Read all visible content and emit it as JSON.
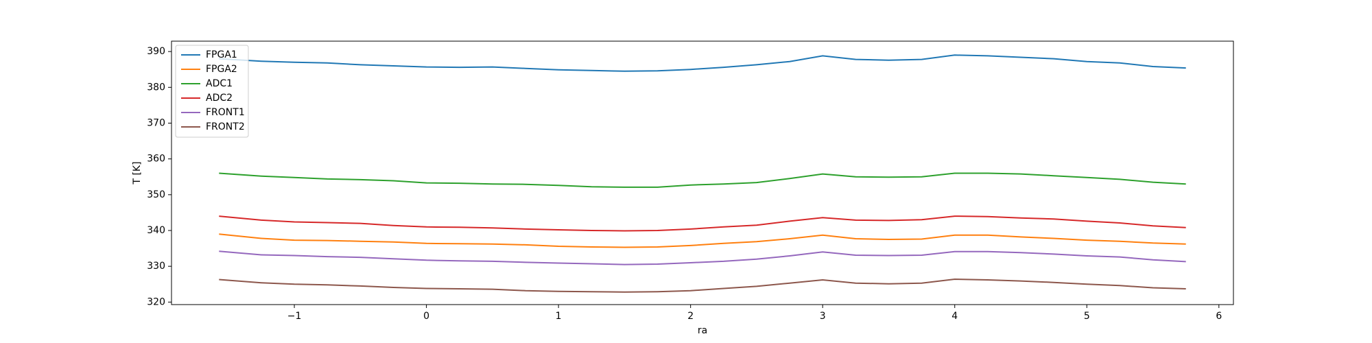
{
  "chart_data": {
    "type": "line",
    "xlabel": "ra",
    "ylabel": "T [K]",
    "x": [
      -1.57,
      -1.25,
      -1,
      -0.75,
      -0.5,
      -0.25,
      0,
      0.25,
      0.5,
      0.75,
      1,
      1.25,
      1.5,
      1.75,
      2,
      2.25,
      2.5,
      2.75,
      3,
      3.25,
      3.5,
      3.75,
      4,
      4.25,
      4.5,
      4.75,
      5,
      5.25,
      5.5,
      5.75
    ],
    "series": [
      {
        "name": "FPGA1",
        "color": "#1f77b4",
        "values": [
          388,
          387.3,
          387,
          386.8,
          386.3,
          386,
          385.7,
          385.6,
          385.7,
          385.3,
          384.9,
          384.7,
          384.5,
          384.6,
          385,
          385.6,
          386.3,
          387.2,
          388.8,
          387.8,
          387.6,
          387.8,
          389,
          388.8,
          388.4,
          388,
          387.2,
          386.8,
          385.8,
          385.4
        ]
      },
      {
        "name": "FPGA2",
        "color": "#ff7f0e",
        "values": [
          339,
          337.8,
          337.3,
          337.2,
          337,
          336.8,
          336.4,
          336.3,
          336.2,
          336,
          335.6,
          335.4,
          335.3,
          335.4,
          335.8,
          336.4,
          336.9,
          337.7,
          338.7,
          337.7,
          337.5,
          337.6,
          338.7,
          338.7,
          338.2,
          337.8,
          337.3,
          337,
          336.5,
          336.2
        ]
      },
      {
        "name": "ADC1",
        "color": "#2ca02c",
        "values": [
          356,
          355.2,
          354.8,
          354.4,
          354.2,
          353.9,
          353.3,
          353.2,
          353,
          352.9,
          352.6,
          352.2,
          352.1,
          352.1,
          352.7,
          353,
          353.4,
          354.5,
          355.8,
          355,
          354.9,
          355,
          356,
          356,
          355.8,
          355.3,
          354.8,
          354.3,
          353.5,
          353
        ]
      },
      {
        "name": "ADC2",
        "color": "#d62728",
        "values": [
          344,
          342.9,
          342.4,
          342.2,
          342,
          341.4,
          341,
          340.9,
          340.7,
          340.4,
          340.2,
          340,
          339.9,
          340,
          340.4,
          341,
          341.5,
          342.6,
          343.6,
          342.9,
          342.8,
          343,
          344,
          343.9,
          343.5,
          343.2,
          342.6,
          342.1,
          341.3,
          340.8
        ]
      },
      {
        "name": "FRONT1",
        "color": "#9467bd",
        "values": [
          334.2,
          333.2,
          333,
          332.7,
          332.5,
          332.1,
          331.7,
          331.5,
          331.4,
          331.1,
          330.9,
          330.7,
          330.5,
          330.6,
          331,
          331.4,
          332,
          332.9,
          334,
          333.1,
          333,
          333.1,
          334.1,
          334.1,
          333.8,
          333.4,
          332.9,
          332.6,
          331.8,
          331.3
        ]
      },
      {
        "name": "FRONT2",
        "color": "#8c564b",
        "values": [
          326.3,
          325.4,
          325,
          324.8,
          324.5,
          324.1,
          323.8,
          323.7,
          323.6,
          323.2,
          323,
          322.9,
          322.8,
          322.9,
          323.2,
          323.8,
          324.4,
          325.3,
          326.2,
          325.3,
          325.1,
          325.3,
          326.4,
          326.2,
          325.9,
          325.5,
          325,
          324.6,
          324,
          323.7
        ]
      }
    ],
    "xlim": [
      -1.93,
      6.11
    ],
    "xticks": [
      {
        "value": -1,
        "label": "−1"
      },
      0,
      1,
      2,
      3,
      4,
      5,
      6
    ],
    "ylim": [
      319.3,
      392.9
    ],
    "yticks": [
      320,
      330,
      340,
      350,
      360,
      370,
      380,
      390
    ],
    "legend": "upper left"
  }
}
